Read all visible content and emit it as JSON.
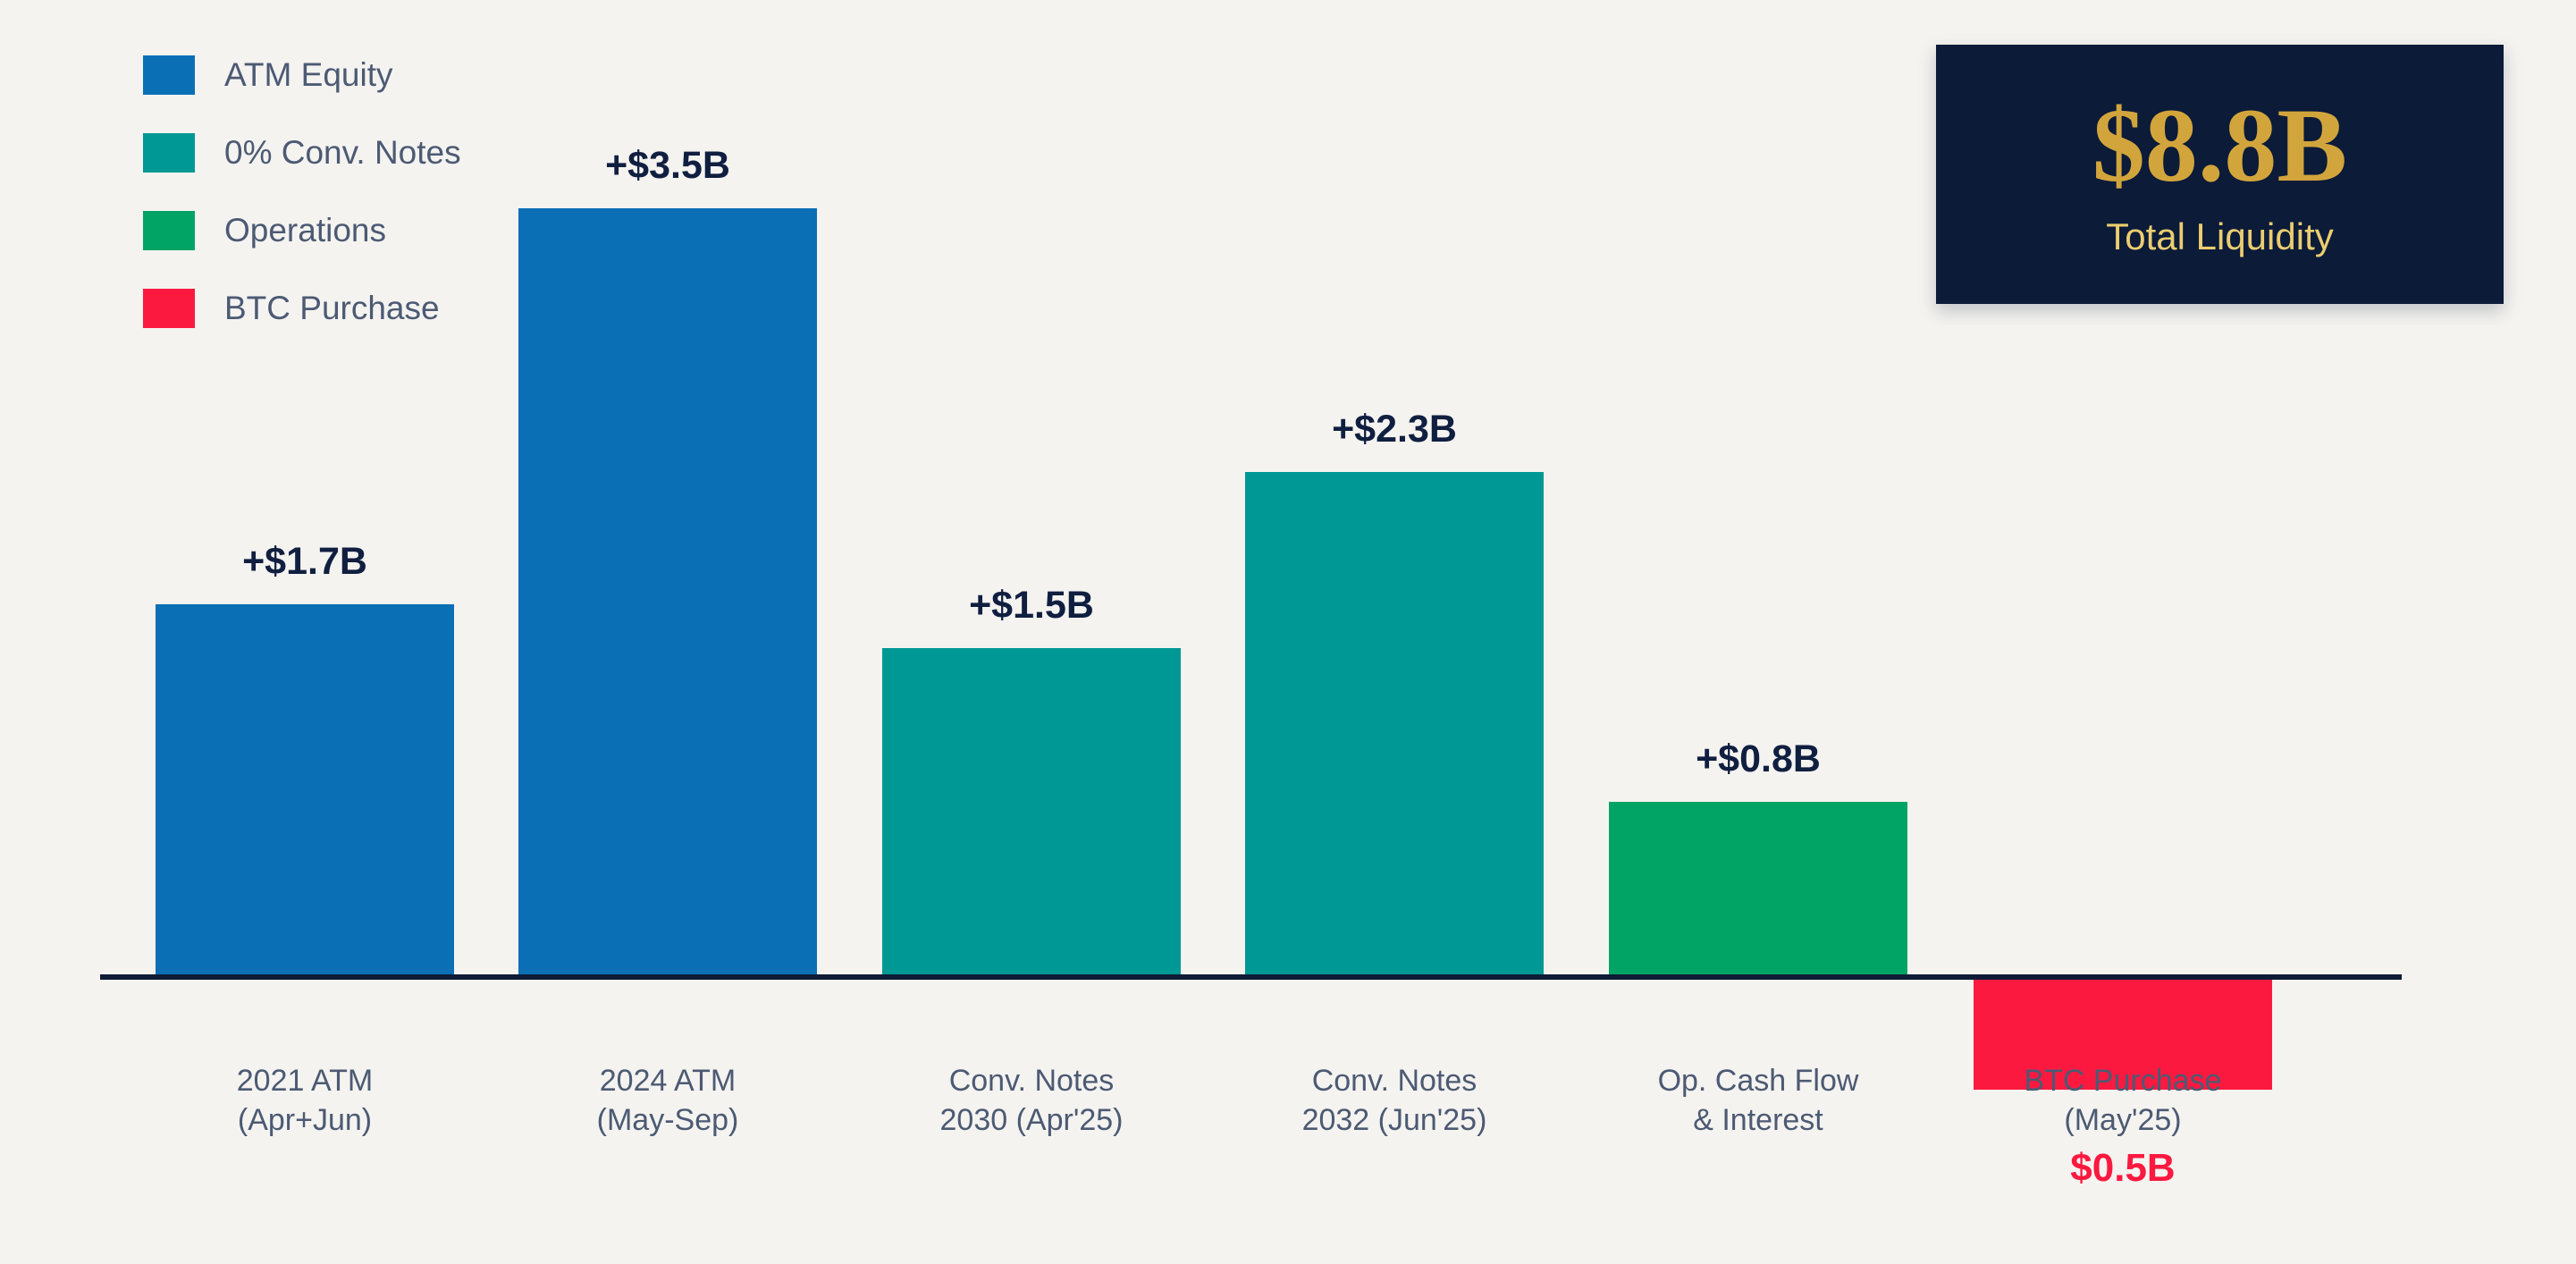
{
  "background": "#F4F3F0",
  "legend": {
    "items": [
      {
        "label": "ATM Equity",
        "color": "#0A6FB5"
      },
      {
        "label": "0% Conv. Notes",
        "color": "#009894"
      },
      {
        "label": "Operations",
        "color": "#01A465"
      },
      {
        "label": "BTC Purchase",
        "color": "#FC1940"
      }
    ]
  },
  "total_box": {
    "value": "$8.8B",
    "label": "Total Liquidity",
    "background": "#0B1B38",
    "value_color": "#D2A53C",
    "label_color": "#EBCD70"
  },
  "chart_data": {
    "type": "bar",
    "title": "",
    "xlabel": "",
    "ylabel": "",
    "categories": [
      "2021 ATM (Apr+Jun)",
      "2024 ATM (May-Sep)",
      "Conv. Notes 2030 (Apr'25)",
      "Conv. Notes 2032 (Jun'25)",
      "Op. Cash Flow & Interest",
      "BTC Purchase (May'25)"
    ],
    "values": [
      1.7,
      3.5,
      1.5,
      2.3,
      0.8,
      -0.5
    ],
    "bars": [
      {
        "category_lines": [
          "2021 ATM",
          "(Apr+Jun)"
        ],
        "value": 1.7,
        "value_label": "+$1.7B",
        "series": "ATM Equity",
        "color": "#0A6FB5"
      },
      {
        "category_lines": [
          "2024 ATM",
          "(May-Sep)"
        ],
        "value": 3.5,
        "value_label": "+$3.5B",
        "series": "ATM Equity",
        "color": "#0A6FB5"
      },
      {
        "category_lines": [
          "Conv. Notes",
          "2030 (Apr'25)"
        ],
        "value": 1.5,
        "value_label": "+$1.5B",
        "series": "0% Conv. Notes",
        "color": "#009894"
      },
      {
        "category_lines": [
          "Conv. Notes",
          "2032 (Jun'25)"
        ],
        "value": 2.3,
        "value_label": "+$2.3B",
        "series": "0% Conv. Notes",
        "color": "#009894"
      },
      {
        "category_lines": [
          "Op. Cash Flow",
          "& Interest"
        ],
        "value": 0.8,
        "value_label": "+$0.8B",
        "series": "Operations",
        "color": "#01A465"
      },
      {
        "category_lines": [
          "BTC Purchase",
          "(May'25)"
        ],
        "value": -0.5,
        "value_label": "$0.5B",
        "series": "BTC Purchase",
        "color": "#FC1940",
        "value_label_below": true,
        "value_label_color": "#FC1940"
      }
    ],
    "ylim": [
      -0.5,
      3.5
    ],
    "grid": false,
    "legend_position": "top-left",
    "axis_color": "#0D1B35",
    "value_label_color": "#101F40",
    "category_label_color": "#4C5A73"
  }
}
